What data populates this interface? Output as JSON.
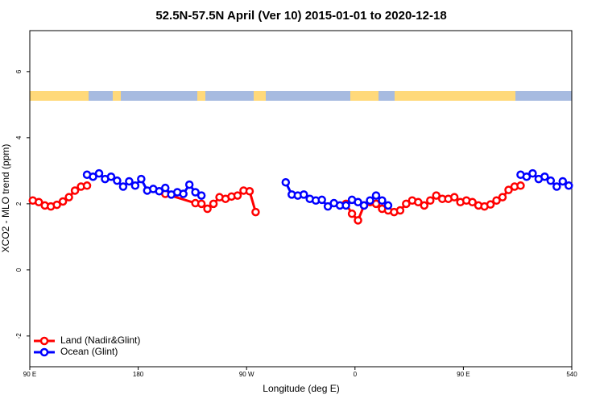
{
  "chart_data": {
    "type": "line",
    "title": "52.5N-57.5N April (Ver 10)   2015-01-01 to 2020-12-18",
    "x_label": "Longitude (deg E)",
    "y_label": "XCO2 - MLO trend (ppm)",
    "xlim": [
      90,
      540
    ],
    "ylim": [
      -2.93,
      7.24
    ],
    "xticks": [
      {
        "value": 90,
        "label": "90 E"
      },
      180,
      {
        "value": 270,
        "label": "90 W"
      },
      {
        "value": 360,
        "label": "0"
      },
      {
        "value": 450,
        "label": "90 E"
      },
      540
    ],
    "yticks": [
      -2,
      0,
      2,
      4,
      6
    ],
    "legend": "bottom-left",
    "series": [
      {
        "name": "Land (Nadir&Glint)",
        "color": "#ff0000",
        "x": [
          92.5,
          97.5,
          102.5,
          107.5,
          112.5,
          117.5,
          122.5,
          127.5,
          132.5,
          137.5,
          142.5,
          202.5,
          227.5,
          232.5,
          237.5,
          242.5,
          247.5,
          252.5,
          257.5,
          262.5,
          267.5,
          272.5,
          277.5,
          282.5,
          352.5,
          357.5,
          362.5,
          367.5,
          372.5,
          377.5,
          382.5,
          387.5,
          392.5,
          397.5,
          402.5,
          407.5,
          412.5,
          417.5,
          422.5,
          427.5,
          432.5,
          437.5,
          442.5,
          447.5,
          452.5,
          457.5,
          462.5,
          467.5,
          472.5,
          477.5,
          482.5,
          487.5,
          492.5,
          497.5
        ],
        "values": [
          2.1,
          2.05,
          1.95,
          1.92,
          1.97,
          2.07,
          2.2,
          2.4,
          2.52,
          2.55,
          null,
          2.3,
          2.02,
          2.0,
          1.85,
          2.0,
          2.2,
          2.15,
          2.22,
          2.25,
          2.4,
          2.38,
          1.75,
          null,
          2.0,
          1.7,
          1.5,
          1.95,
          2.05,
          2.0,
          1.85,
          1.8,
          1.75,
          1.8,
          2.0,
          2.1,
          2.05,
          1.95,
          2.1,
          2.25,
          2.15,
          2.15,
          2.2,
          2.05,
          2.1,
          2.05,
          1.95,
          1.92,
          1.98,
          2.1,
          2.2,
          2.42,
          2.52,
          2.55
        ]
      },
      {
        "name": "Ocean (Glint)",
        "color": "#0000ff",
        "x": [
          137.5,
          142.5,
          147.5,
          152.5,
          157.5,
          162.5,
          167.5,
          172.5,
          177.5,
          182.5,
          187.5,
          192.5,
          197.5,
          202.5,
          207.5,
          212.5,
          217.5,
          222.5,
          227.5,
          232.5,
          237.5,
          302.5,
          307.5,
          312.5,
          317.5,
          322.5,
          327.5,
          332.5,
          337.5,
          342.5,
          347.5,
          352.5,
          357.5,
          362.5,
          367.5,
          372.5,
          377.5,
          382.5,
          387.5,
          392.5,
          497.5,
          502.5,
          507.5,
          512.5,
          517.5,
          522.5,
          527.5,
          532.5,
          537.5
        ],
        "values": [
          2.88,
          2.82,
          2.92,
          2.75,
          2.82,
          2.7,
          2.52,
          2.68,
          2.55,
          2.75,
          2.4,
          2.45,
          2.38,
          2.48,
          2.28,
          2.35,
          2.3,
          2.58,
          2.35,
          2.25,
          null,
          2.65,
          2.28,
          2.25,
          2.28,
          2.15,
          2.1,
          2.12,
          1.92,
          2.02,
          1.95,
          1.95,
          2.12,
          2.05,
          1.95,
          2.1,
          2.25,
          2.1,
          1.95,
          null,
          2.88,
          2.82,
          2.92,
          2.75,
          2.82,
          2.7,
          2.52,
          2.68,
          2.55
        ]
      }
    ]
  }
}
